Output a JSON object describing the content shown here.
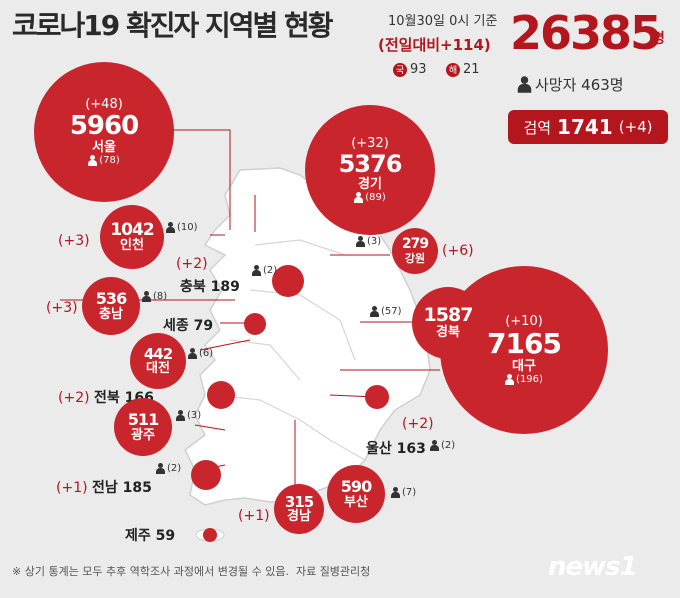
{
  "header": {
    "title": "코로나19 확진자 지역별 현황",
    "basis": "10월30일 0시 기준",
    "daily_change": "(전일대비+114)",
    "total": "26385",
    "total_unit": "명",
    "domestic_badge": "국",
    "domestic": "93",
    "overseas_badge": "해",
    "overseas": "21",
    "deaths": "사망자 463명",
    "quarantine_label": "검역",
    "quarantine": "1741",
    "quarantine_inc": "(+4)"
  },
  "regions": {
    "seoul": {
      "inc": "(+48)",
      "num": "5960",
      "name": "서울",
      "deaths": "(78)"
    },
    "gyeonggi": {
      "inc": "(+32)",
      "num": "5376",
      "name": "경기",
      "deaths": "(89)"
    },
    "incheon": {
      "inc": "(+3)",
      "num": "1042",
      "name": "인천",
      "deaths": "(10)"
    },
    "gangwon": {
      "inc": "(+6)",
      "num": "279",
      "name": "강원",
      "deaths": "(3)"
    },
    "chungbuk": {
      "inc": "(+2)",
      "label": "충북 189",
      "deaths": "(2)"
    },
    "chungnam": {
      "inc": "(+3)",
      "num": "536",
      "name": "충남",
      "deaths": "(8)"
    },
    "sejong": {
      "label": "세종 79"
    },
    "daejeon": {
      "num": "442",
      "name": "대전",
      "deaths": "(6)"
    },
    "gyeongbuk": {
      "num": "1587",
      "name": "경북",
      "deaths": "(57)"
    },
    "daegu": {
      "inc": "(+10)",
      "num": "7165",
      "name": "대구",
      "deaths": "(196)"
    },
    "jeonbuk": {
      "inc": "(+2)",
      "label": "전북 166"
    },
    "gwangju": {
      "num": "511",
      "name": "광주",
      "deaths": "(3)"
    },
    "ulsan": {
      "inc": "(+2)",
      "label": "울산 163",
      "deaths": "(2)"
    },
    "jeonnam": {
      "inc": "(+1)",
      "label": "전남 185",
      "deaths": "(2)"
    },
    "gyeongnam": {
      "inc": "(+1)",
      "num": "315",
      "name": "경남"
    },
    "busan": {
      "num": "590",
      "name": "부산",
      "deaths": "(7)"
    },
    "jeju": {
      "label": "제주 59"
    }
  },
  "footer": {
    "note": "※ 상기 통계는 모두 추후 역학조사 과정에서 변경될 수 있음.",
    "source": "자료  질병관리청",
    "logo": "news1"
  },
  "colors": {
    "accent": "#c8262c",
    "background": "#ebebeb",
    "map": "#ffffff"
  }
}
